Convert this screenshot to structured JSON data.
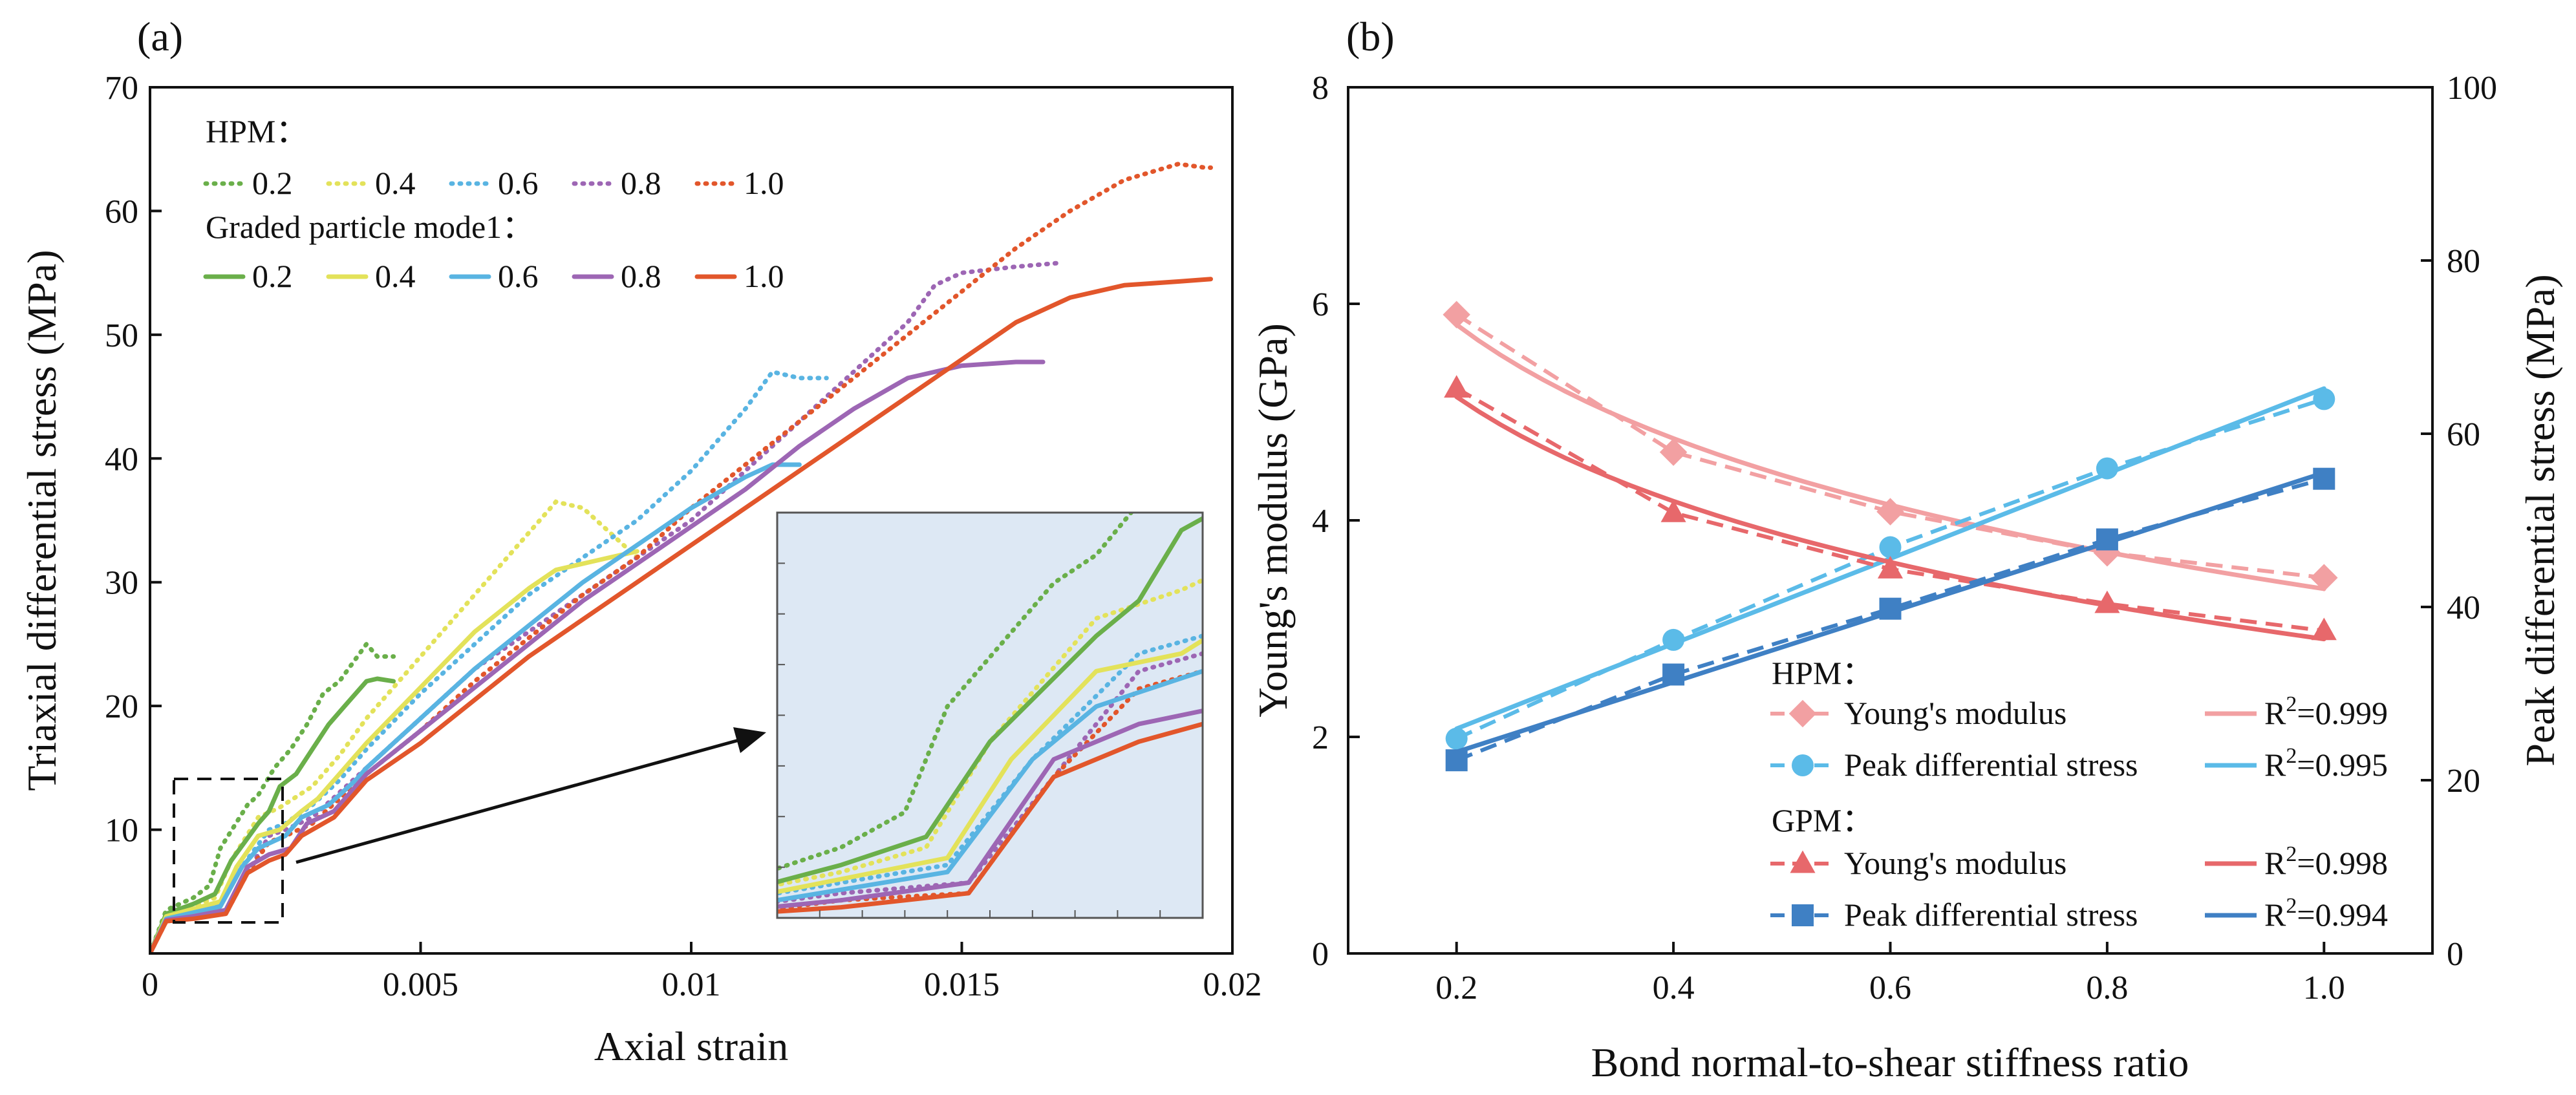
{
  "colors": {
    "g02": "#6aaf4a",
    "g04": "#e3e25a",
    "g06": "#59b4e2",
    "g08": "#9d66b4",
    "g10": "#e2562b",
    "hpmYoung": "#f2a0a2",
    "gpmYoung": "#e7686b",
    "hpmPeak": "#5bbbe8",
    "gpmPeak": "#3f80c4",
    "inset_bg": "#dde8f4"
  },
  "chart_data": [
    {
      "id": "a",
      "type": "line",
      "panel_label": "(a)",
      "xlabel": "Axial strain",
      "ylabel": "Triaxial differential stress (MPa)",
      "xlim": [
        0,
        0.02
      ],
      "ylim": [
        0,
        70
      ],
      "xticks": [
        0,
        0.005,
        0.01,
        0.015,
        0.02
      ],
      "xtick_labels": [
        "0",
        "0.005",
        "0.01",
        "0.015",
        "0.02"
      ],
      "yticks": [
        10,
        20,
        30,
        40,
        50,
        60,
        70
      ],
      "ytick_labels": [
        "10",
        "20",
        "30",
        "40",
        "50",
        "60",
        "70"
      ],
      "legend": {
        "hpm_title": "HPM：",
        "gpm_title": "Graded particle mode1：",
        "hpm_labels": [
          "0.2",
          "0.4",
          "0.6",
          "0.8",
          "1.0"
        ],
        "gpm_labels": [
          "0.2",
          "0.4",
          "0.6",
          "0.8",
          "1.0"
        ]
      },
      "inset": {
        "xlim": [
          0.0005,
          0.0025
        ],
        "ylim": [
          2.5,
          14
        ]
      },
      "series": [
        {
          "name": "HPM 0.2",
          "group": "HPM",
          "ratio": "0.2",
          "style": "dotted",
          "color_key": "g02",
          "x": [
            0,
            0.0003,
            0.0008,
            0.0011,
            0.0013,
            0.0018,
            0.002,
            0.0023,
            0.0026,
            0.0029,
            0.0032,
            0.0035,
            0.004,
            0.0042,
            0.0045
          ],
          "y": [
            0,
            3.5,
            4.5,
            5.5,
            8.5,
            12,
            12.8,
            15,
            16.5,
            18.5,
            21,
            22,
            25,
            24,
            24
          ]
        },
        {
          "name": "HPM 0.4",
          "group": "HPM",
          "ratio": "0.4",
          "style": "dotted",
          "color_key": "g04",
          "x": [
            0,
            0.0003,
            0.0008,
            0.0012,
            0.0015,
            0.002,
            0.0024,
            0.003,
            0.0035,
            0.004,
            0.005,
            0.006,
            0.0068,
            0.0075,
            0.008,
            0.0085,
            0.009
          ],
          "y": [
            0,
            3.2,
            3.8,
            4.5,
            7.5,
            11,
            11.8,
            13.5,
            16,
            19,
            24,
            29,
            33,
            36.5,
            36,
            34,
            32
          ]
        },
        {
          "name": "HPM 0.6",
          "group": "HPM",
          "ratio": "0.6",
          "style": "dotted",
          "color_key": "g06",
          "x": [
            0,
            0.0003,
            0.0008,
            0.0013,
            0.0017,
            0.0022,
            0.0025,
            0.003,
            0.0035,
            0.004,
            0.005,
            0.006,
            0.007,
            0.008,
            0.009,
            0.01,
            0.011,
            0.0115,
            0.012,
            0.0125
          ],
          "y": [
            0,
            3,
            3.5,
            4,
            7,
            10,
            10.5,
            12,
            14,
            16.5,
            21,
            25,
            29,
            32,
            35,
            39,
            44,
            47,
            46.5,
            46.5
          ]
        },
        {
          "name": "HPM 0.8",
          "group": "HPM",
          "ratio": "0.8",
          "style": "dotted",
          "color_key": "g08",
          "x": [
            0,
            0.0003,
            0.0008,
            0.0014,
            0.0018,
            0.0022,
            0.0025,
            0.003,
            0.0035,
            0.004,
            0.005,
            0.006,
            0.007,
            0.008,
            0.009,
            0.01,
            0.011,
            0.012,
            0.013,
            0.014,
            0.0145,
            0.015,
            0.016,
            0.0168
          ],
          "y": [
            0,
            2.8,
            3.2,
            3.5,
            6.5,
            9.5,
            10,
            11,
            13,
            15,
            19,
            23,
            26,
            29,
            32,
            35,
            39,
            43,
            47,
            51,
            54,
            55,
            55.5,
            55.8
          ]
        },
        {
          "name": "HPM 1.0",
          "group": "HPM",
          "ratio": "1.0",
          "style": "dotted",
          "color_key": "g10",
          "x": [
            0,
            0.0003,
            0.0008,
            0.0014,
            0.0018,
            0.0022,
            0.0025,
            0.003,
            0.0035,
            0.004,
            0.005,
            0.006,
            0.007,
            0.008,
            0.009,
            0.01,
            0.011,
            0.012,
            0.013,
            0.014,
            0.015,
            0.016,
            0.017,
            0.018,
            0.019,
            0.0195,
            0.0196
          ],
          "y": [
            0,
            2.6,
            3,
            3.2,
            6.5,
            9,
            9.5,
            10.5,
            12.5,
            14.5,
            18,
            22,
            25.5,
            29,
            32,
            36,
            39.5,
            43,
            46.5,
            50,
            53.5,
            57,
            60,
            62.5,
            63.8,
            63.5,
            63.5
          ]
        },
        {
          "name": "GPM 0.2",
          "group": "GPM",
          "ratio": "0.2",
          "style": "solid",
          "color_key": "g02",
          "x": [
            0,
            0.0003,
            0.0008,
            0.0012,
            0.0015,
            0.002,
            0.0022,
            0.0024,
            0.0027,
            0.003,
            0.0033,
            0.0036,
            0.004,
            0.0042,
            0.0045
          ],
          "y": [
            0,
            3.2,
            4,
            4.8,
            7.5,
            10.5,
            11.5,
            13.5,
            14.5,
            16.5,
            18.5,
            20,
            22,
            22.2,
            22
          ]
        },
        {
          "name": "GPM 0.4",
          "group": "GPM",
          "ratio": "0.4",
          "style": "solid",
          "color_key": "g04",
          "x": [
            0,
            0.0003,
            0.0008,
            0.0013,
            0.0016,
            0.002,
            0.0024,
            0.0028,
            0.0031,
            0.0035,
            0.004,
            0.005,
            0.006,
            0.007,
            0.0075,
            0.008,
            0.0085,
            0.009
          ],
          "y": [
            0,
            3,
            3.6,
            4.2,
            7,
            9.5,
            10,
            11.5,
            12.5,
            14.5,
            17,
            21.5,
            26,
            29.5,
            31,
            31.5,
            32,
            32.5
          ]
        },
        {
          "name": "GPM 0.6",
          "group": "GPM",
          "ratio": "0.6",
          "style": "solid",
          "color_key": "g06",
          "x": [
            0,
            0.0003,
            0.0008,
            0.0013,
            0.0017,
            0.002,
            0.0025,
            0.0028,
            0.0033,
            0.0038,
            0.004,
            0.005,
            0.006,
            0.007,
            0.008,
            0.009,
            0.01,
            0.011,
            0.0115,
            0.012
          ],
          "y": [
            0,
            2.8,
            3.3,
            3.8,
            7,
            8.5,
            9.5,
            11,
            12,
            14,
            15,
            19,
            23,
            26.5,
            30,
            33,
            36,
            38.5,
            39.5,
            39.5
          ]
        },
        {
          "name": "GPM 0.8",
          "group": "GPM",
          "ratio": "0.8",
          "style": "solid",
          "color_key": "g08",
          "x": [
            0,
            0.0003,
            0.0008,
            0.0014,
            0.0018,
            0.0022,
            0.0026,
            0.0029,
            0.0034,
            0.0038,
            0.004,
            0.005,
            0.006,
            0.007,
            0.008,
            0.009,
            0.01,
            0.011,
            0.012,
            0.013,
            0.014,
            0.015,
            0.016,
            0.0165
          ],
          "y": [
            0,
            2.7,
            3,
            3.5,
            7,
            8,
            8.5,
            10.5,
            11.5,
            13.5,
            14.5,
            18,
            21.5,
            25,
            28.5,
            31.5,
            34.5,
            37.5,
            41,
            44,
            46.5,
            47.5,
            47.8,
            47.8
          ]
        },
        {
          "name": "GPM 1.0",
          "group": "GPM",
          "ratio": "1.0",
          "style": "solid",
          "color_key": "g10",
          "x": [
            0,
            0.0003,
            0.0008,
            0.0014,
            0.0018,
            0.0022,
            0.0025,
            0.0028,
            0.0034,
            0.0038,
            0.004,
            0.005,
            0.006,
            0.007,
            0.008,
            0.009,
            0.01,
            0.011,
            0.012,
            0.013,
            0.014,
            0.015,
            0.016,
            0.017,
            0.018,
            0.019,
            0.0196
          ],
          "y": [
            0,
            2.6,
            2.8,
            3.2,
            6.5,
            7.5,
            8,
            9.5,
            11,
            13,
            14,
            17,
            20.5,
            24,
            27,
            30,
            33,
            36,
            39,
            42,
            45,
            48,
            51,
            53,
            54,
            54.3,
            54.5
          ]
        }
      ]
    },
    {
      "id": "b",
      "type": "scatter",
      "panel_label": "(b)",
      "xlabel": "Bond normal-to-shear stiffness ratio",
      "ylabel_left": "Young's modulus (GPa)",
      "ylabel_right": "Peak differential stress (MPa)",
      "xlim": [
        0.1,
        1.1
      ],
      "ylim_left": [
        0,
        8
      ],
      "ylim_right": [
        0,
        100
      ],
      "xticks": [
        0.2,
        0.4,
        0.6,
        0.8,
        1.0
      ],
      "xtick_labels": [
        "0.2",
        "0.4",
        "0.6",
        "0.8",
        "1.0"
      ],
      "yticks_left": [
        0,
        2,
        4,
        6,
        8
      ],
      "ytick_labels_left": [
        "0",
        "2",
        "4",
        "6",
        "8"
      ],
      "yticks_right": [
        0,
        20,
        40,
        60,
        80,
        100
      ],
      "ytick_labels_right": [
        "0",
        "20",
        "40",
        "60",
        "80",
        "100"
      ],
      "categories": [
        0.2,
        0.4,
        0.6,
        0.8,
        1.0
      ],
      "legend": {
        "hpm_title": "HPM：",
        "gpm_title": "GPM：",
        "entries": [
          {
            "label": "Young's modulus",
            "fit": "R²=0.999",
            "fit_prefix": "R",
            "fit_sup": "2",
            "fit_suffix": "=0.999"
          },
          {
            "label": "Peak differential stress",
            "fit": "R²=0.995",
            "fit_prefix": "R",
            "fit_sup": "2",
            "fit_suffix": "=0.995"
          },
          {
            "label": "Young's modulus",
            "fit": "R²=0.998",
            "fit_prefix": "R",
            "fit_sup": "2",
            "fit_suffix": "=0.998"
          },
          {
            "label": "Peak differential stress",
            "fit": "R²=0.994",
            "fit_prefix": "R",
            "fit_sup": "2",
            "fit_suffix": "=0.994"
          }
        ]
      },
      "series": [
        {
          "name": "HPM Young's modulus",
          "axis": "left",
          "marker": "diamond",
          "color_key": "hpmYoung",
          "values": [
            5.9,
            4.63,
            4.08,
            3.7,
            3.47
          ],
          "fit": "R²=0.999"
        },
        {
          "name": "HPM Peak differential stress",
          "axis": "right",
          "marker": "circle",
          "color_key": "hpmPeak",
          "values": [
            24.8,
            36.2,
            46.9,
            56.0,
            64.0
          ],
          "fit": "R²=0.995"
        },
        {
          "name": "GPM Young's modulus",
          "axis": "left",
          "marker": "triangle",
          "color_key": "gpmYoung",
          "values": [
            5.22,
            4.07,
            3.55,
            3.23,
            2.98
          ],
          "fit": "R²=0.998"
        },
        {
          "name": "GPM Peak differential stress",
          "axis": "right",
          "marker": "square",
          "color_key": "gpmPeak",
          "values": [
            22.3,
            32.2,
            39.8,
            47.8,
            54.8
          ],
          "fit": "R²=0.994"
        }
      ]
    }
  ]
}
